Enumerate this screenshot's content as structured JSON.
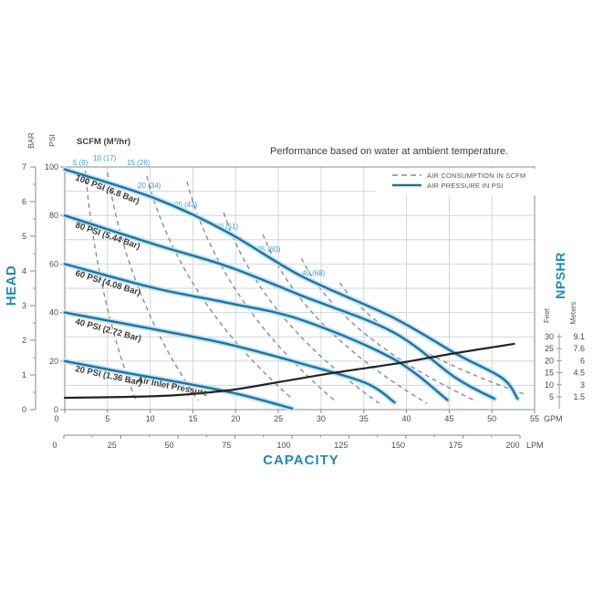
{
  "title": "Performance based on water at ambient temperature.",
  "legend": {
    "items": [
      {
        "label": "AIR CONSUMPTION IN SCFM",
        "style": "dashed"
      },
      {
        "label": "AIR PRESSURE IN PSI",
        "style": "solid"
      }
    ]
  },
  "axis_titles": {
    "head": "HEAD",
    "capacity": "CAPACITY",
    "npshr": "NPSHR",
    "bar": "BAR",
    "psi": "PSI",
    "feet": "Feet",
    "meters": "Meters",
    "gpm": "GPM",
    "lpm": "LPM",
    "scfm": "SCFM (M³/hr)"
  },
  "air_inlet_note": "Air Inlet Pressure",
  "colors": {
    "accent_blue": "#1E8AB8",
    "curve_blue": "#1E749F",
    "curve_halo": "#C3E3F2",
    "scfm_label_blue": "#3F9FC8",
    "dashed_gray": "#8A8D90",
    "npshr_black": "#222222",
    "grid": "#D2D6DA",
    "border": "#9AA0A6",
    "text_dark": "#3C3C3C",
    "text_mid": "#4A4A4A",
    "text_soft": "#555555"
  },
  "chart_data": {
    "type": "line",
    "x_axis": {
      "label": "CAPACITY",
      "unit": "GPM",
      "ticks": [
        0,
        5,
        10,
        15,
        20,
        25,
        30,
        35,
        40,
        45,
        50,
        55
      ],
      "range": [
        0,
        55
      ]
    },
    "x_axis_secondary": {
      "unit": "LPM",
      "ticks": [
        0,
        25,
        50,
        75,
        100,
        125,
        150,
        175,
        200
      ]
    },
    "y_left_psi": {
      "unit": "PSI",
      "ticks": [
        0,
        20,
        40,
        60,
        80,
        100
      ],
      "range": [
        0,
        100
      ],
      "minor_step": 10
    },
    "y_left_bar": {
      "unit": "BAR",
      "ticks": [
        0,
        1,
        2,
        3,
        4,
        5,
        6,
        7
      ]
    },
    "y_right_feet": {
      "unit": "Feet",
      "ticks": [
        30,
        25,
        20,
        15,
        10,
        5
      ]
    },
    "y_right_meters": {
      "unit": "Meters",
      "ticks": [
        9.1,
        7.6,
        6,
        4.5,
        3,
        1.5
      ]
    },
    "grid": true,
    "legend_position": "top-right",
    "pressure_curves": [
      {
        "label": "100 PSI (6.8 Bar)",
        "psi": 100,
        "points_gpm_psi": [
          [
            0,
            99
          ],
          [
            10.6,
            87
          ],
          [
            19.1,
            73
          ],
          [
            27.7,
            55
          ],
          [
            38.4,
            38
          ],
          [
            45.8,
            23
          ],
          [
            51.2,
            13
          ],
          [
            53,
            4.5
          ]
        ]
      },
      {
        "label": "80 PSI (5.44 Bar)",
        "psi": 80,
        "points_gpm_psi": [
          [
            0,
            80
          ],
          [
            10.6,
            68
          ],
          [
            19.1,
            59
          ],
          [
            27.7,
            47
          ],
          [
            38.4,
            32
          ],
          [
            45.8,
            13
          ],
          [
            50.3,
            4.5
          ]
        ]
      },
      {
        "label": "60 PSI (4.08 Bar)",
        "psi": 60,
        "points_gpm_psi": [
          [
            0,
            60
          ],
          [
            10.6,
            50
          ],
          [
            19.1,
            44
          ],
          [
            27.7,
            37
          ],
          [
            38.4,
            21
          ],
          [
            44.8,
            4
          ]
        ]
      },
      {
        "label": "40 PSI (2.72 Bar)",
        "psi": 40,
        "points_gpm_psi": [
          [
            0,
            40
          ],
          [
            10.6,
            33
          ],
          [
            19.1,
            27
          ],
          [
            27.7,
            19
          ],
          [
            35.2,
            11
          ],
          [
            38.6,
            3
          ]
        ]
      },
      {
        "label": "20 PSI (1.36 Bar)",
        "psi": 20,
        "points_gpm_psi": [
          [
            0,
            20
          ],
          [
            7.4,
            15
          ],
          [
            13.8,
            11
          ],
          [
            20.2,
            6.5
          ],
          [
            26.6,
            0.5
          ]
        ]
      }
    ],
    "scfm_lines": [
      {
        "label": "5 (9)",
        "scfm": 5,
        "top_gpm_psi": [
          2.4,
          98.5
        ],
        "bottom_gpm_psi": [
          8.4,
          3
        ]
      },
      {
        "label": "10 (17)",
        "scfm": 10,
        "top_gpm_psi": [
          5,
          97.7
        ],
        "bottom_gpm_psi": [
          15.6,
          3.8
        ]
      },
      {
        "label": "15 (26)",
        "scfm": 15,
        "top_gpm_psi": [
          9.6,
          96.2
        ],
        "bottom_gpm_psi": [
          26.6,
          4.5
        ]
      },
      {
        "label": "20 (34)",
        "scfm": 20,
        "top_gpm_psi": [
          14.3,
          94
        ],
        "bottom_gpm_psi": [
          31.7,
          3.4
        ]
      },
      {
        "label": "25 (43)",
        "scfm": 25,
        "top_gpm_psi": [
          18.6,
          81.2
        ],
        "bottom_gpm_psi": [
          36.8,
          2.6
        ]
      },
      {
        "label": "30 (51)",
        "scfm": 30,
        "top_gpm_psi": [
          23.2,
          72.2
        ],
        "bottom_gpm_psi": [
          42.4,
          2.6
        ]
      },
      {
        "label": "35 (60)",
        "scfm": 35,
        "top_gpm_psi": [
          27.7,
          62.4
        ],
        "bottom_gpm_psi": [
          48.2,
          3.4
        ]
      },
      {
        "label": "40 (68)",
        "scfm": 40,
        "top_gpm_psi": [
          32.2,
          52.3
        ],
        "bottom_gpm_psi": [
          53.8,
          6.4
        ]
      }
    ],
    "npshr_curve": {
      "name": "NPSHR",
      "points_gpm_feet": [
        [
          0,
          4.6
        ],
        [
          11.6,
          5.4
        ],
        [
          19.1,
          7.7
        ],
        [
          25.5,
          11.4
        ],
        [
          31.9,
          15.2
        ],
        [
          38.4,
          18.6
        ],
        [
          45.8,
          23.2
        ],
        [
          52.6,
          27
        ]
      ]
    }
  }
}
